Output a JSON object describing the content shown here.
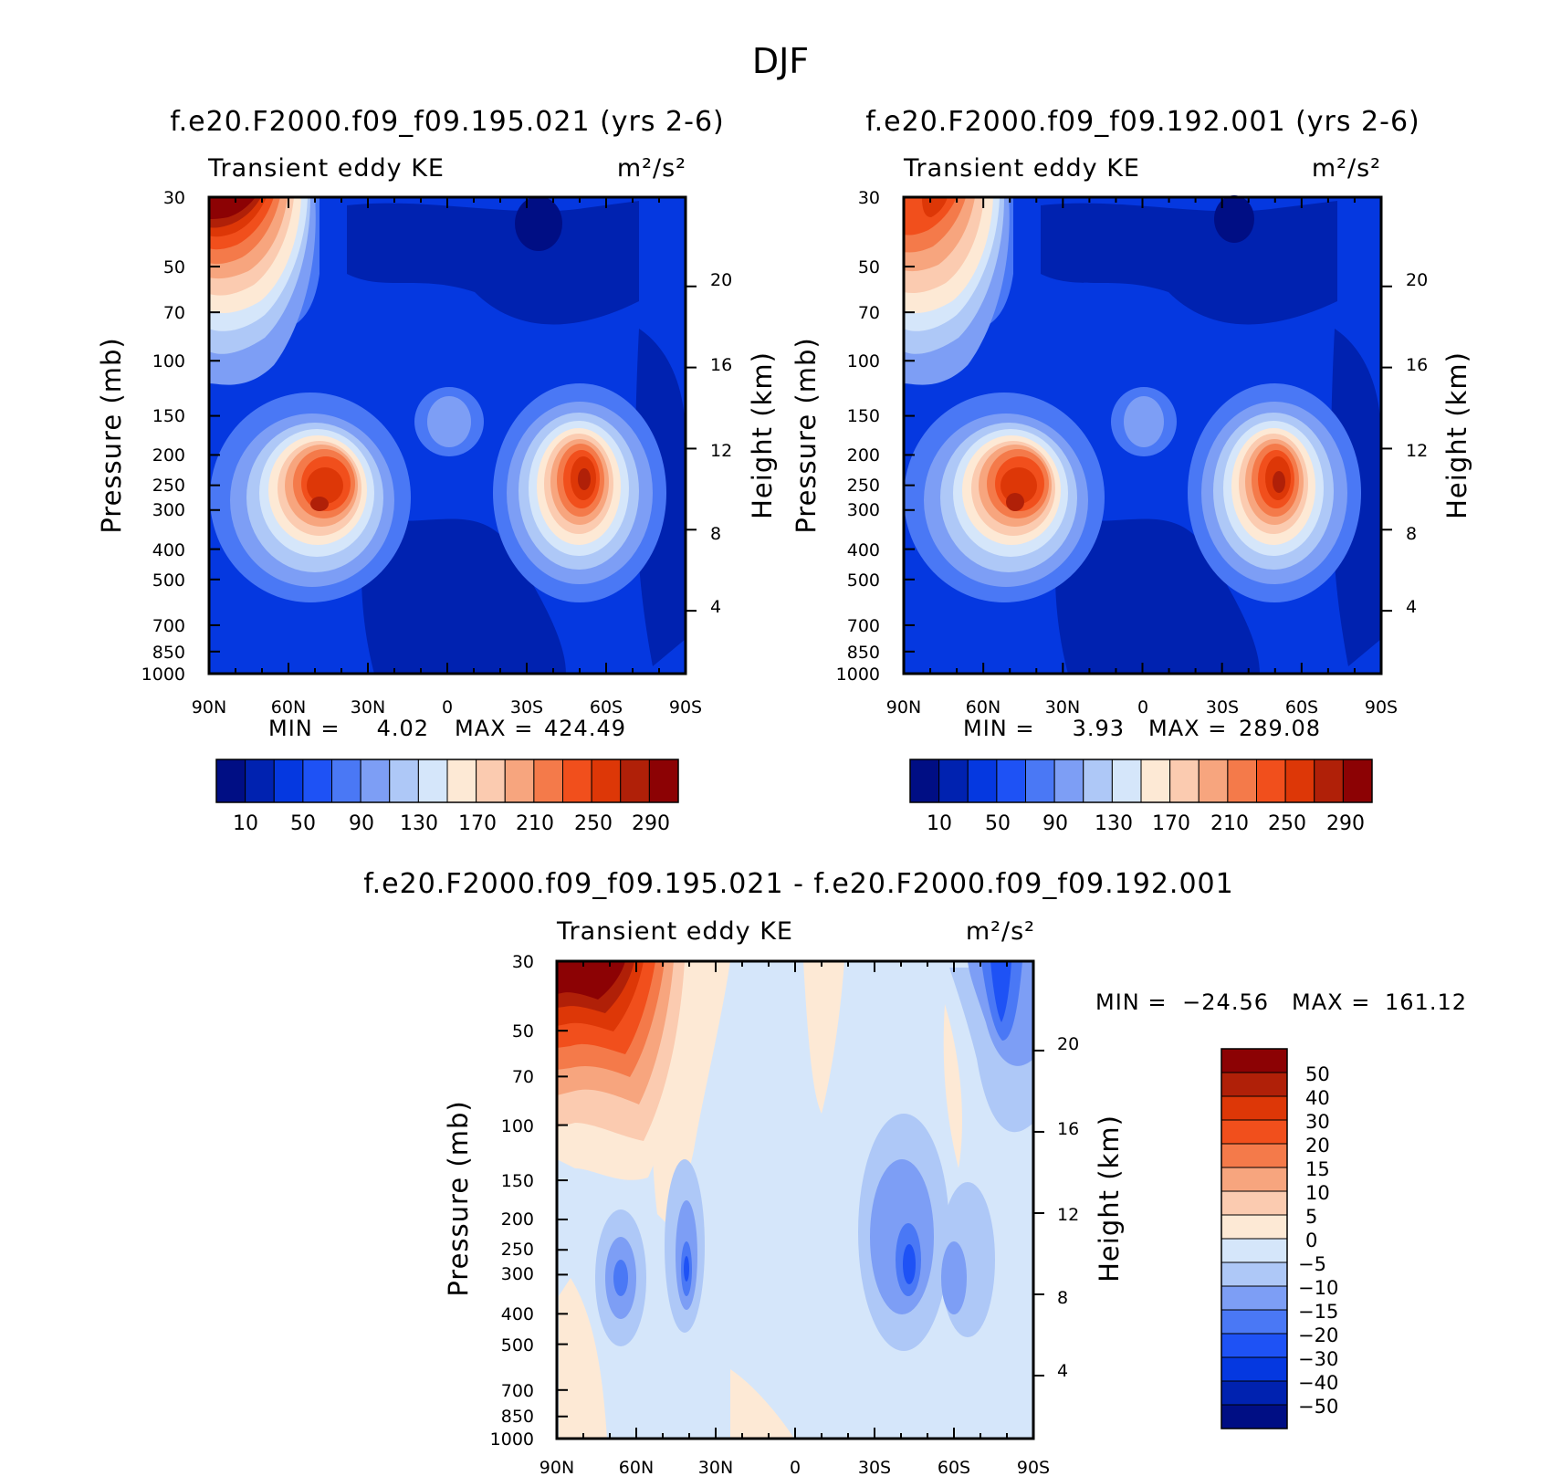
{
  "title": "DJF",
  "colorbar_colors_main": [
    "#000e84",
    "#0022b0",
    "#0538e0",
    "#1e52f5",
    "#4a78f5",
    "#7d9ef5",
    "#aec8f7",
    "#d5e6fa",
    "#fde9d5",
    "#fbcbb0",
    "#f7a57e",
    "#f47a4a",
    "#f14f1c",
    "#dd3707",
    "#b02008",
    "#8c0204"
  ],
  "colorbar_colors_diff": [
    "#000e84",
    "#0022b0",
    "#0538e0",
    "#1e52f5",
    "#4a78f5",
    "#7d9ef5",
    "#aec8f7",
    "#d5e6fa",
    "#fde9d5",
    "#fbcbb0",
    "#f7a57e",
    "#f47a4a",
    "#f14f1c",
    "#dd3707",
    "#b02008",
    "#8c0204"
  ],
  "chart_data": [
    {
      "type": "heatmap",
      "title": "f.e20.F2000.f09_f09.195.021 (yrs 2-6)",
      "left_subtitle": "Transient eddy KE",
      "right_subtitle": "m²/s²",
      "ylabel": "Pressure (mb)",
      "ylabel_right": "Height (km)",
      "x_ticks": [
        "90N",
        "60N",
        "30N",
        "0",
        "30S",
        "60S",
        "90S"
      ],
      "y_ticks": [
        "30",
        "50",
        "70",
        "100",
        "150",
        "200",
        "250",
        "300",
        "400",
        "500",
        "700",
        "850",
        "1000"
      ],
      "y_ticks_right": [
        "4",
        "8",
        "12",
        "16",
        "20"
      ],
      "min_label": "MIN =",
      "min_value": "4.02",
      "max_label": "MAX =",
      "max_value": "424.49",
      "colorbar_labels": [
        "10",
        "50",
        "90",
        "130",
        "170",
        "210",
        "250",
        "290"
      ],
      "features": [
        {
          "lat": -80,
          "p": 35,
          "value": 380
        },
        {
          "lat": -45,
          "p": 290,
          "value": 280
        },
        {
          "lat": 52,
          "p": 270,
          "value": 270
        },
        {
          "lat": 0,
          "p": 150,
          "value": 120
        }
      ]
    },
    {
      "type": "heatmap",
      "title": "f.e20.F2000.f09_f09.192.001 (yrs 2-6)",
      "left_subtitle": "Transient eddy KE",
      "right_subtitle": "m²/s²",
      "ylabel": "Pressure (mb)",
      "ylabel_right": "Height (km)",
      "x_ticks": [
        "90N",
        "60N",
        "30N",
        "0",
        "30S",
        "60S",
        "90S"
      ],
      "y_ticks": [
        "30",
        "50",
        "70",
        "100",
        "150",
        "200",
        "250",
        "300",
        "400",
        "500",
        "700",
        "850",
        "1000"
      ],
      "y_ticks_right": [
        "4",
        "8",
        "12",
        "16",
        "20"
      ],
      "min_label": "MIN =",
      "min_value": "3.93",
      "max_label": "MAX =",
      "max_value": "289.08",
      "colorbar_labels": [
        "10",
        "50",
        "90",
        "130",
        "170",
        "210",
        "250",
        "290"
      ],
      "features": [
        {
          "lat": -82,
          "p": 35,
          "value": 230
        },
        {
          "lat": -45,
          "p": 290,
          "value": 275
        },
        {
          "lat": 50,
          "p": 270,
          "value": 270
        },
        {
          "lat": 0,
          "p": 150,
          "value": 120
        }
      ]
    },
    {
      "type": "heatmap",
      "title": "f.e20.F2000.f09_f09.195.021 - f.e20.F2000.f09_f09.192.001",
      "left_subtitle": "Transient eddy KE",
      "right_subtitle": "m²/s²",
      "ylabel": "Pressure (mb)",
      "ylabel_right": "Height (km)",
      "x_ticks": [
        "90N",
        "60N",
        "30N",
        "0",
        "30S",
        "60S",
        "90S"
      ],
      "y_ticks": [
        "30",
        "50",
        "70",
        "100",
        "150",
        "200",
        "250",
        "300",
        "400",
        "500",
        "700",
        "850",
        "1000"
      ],
      "y_ticks_right": [
        "4",
        "8",
        "12",
        "16",
        "20"
      ],
      "min_label": "MIN =",
      "min_value": "-24.56",
      "max_label": "MAX =",
      "max_value": "161.12",
      "colorbar_labels": [
        "50",
        "40",
        "30",
        "20",
        "15",
        "10",
        "5",
        "0",
        "-5",
        "-10",
        "-15",
        "-20",
        "-30",
        "-40",
        "-50"
      ],
      "features": [
        {
          "lat": -80,
          "p": 40,
          "value": 60
        },
        {
          "lat": 45,
          "p": 270,
          "value": -20
        },
        {
          "lat": 73,
          "p": 45,
          "value": -22
        },
        {
          "lat": -60,
          "p": 300,
          "value": -12
        }
      ]
    }
  ]
}
